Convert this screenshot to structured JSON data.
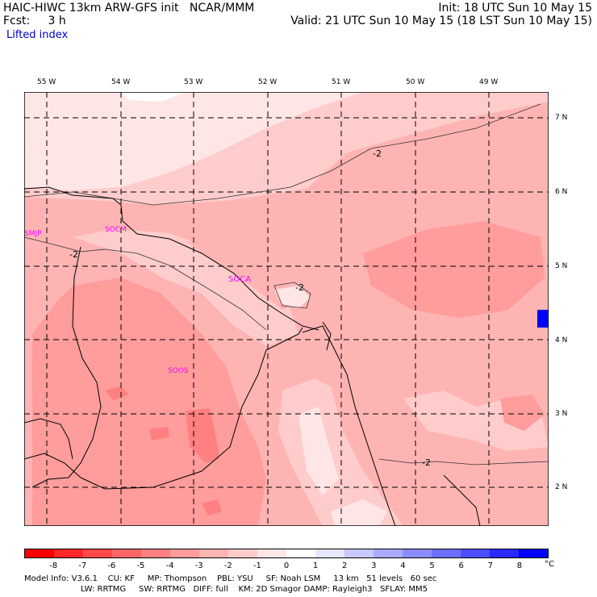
{
  "header": {
    "line1_left": "HAIC-HIWC 13km ARW-GFS init   NCAR/MMM",
    "line2_left": "Fcst:     3 h",
    "field": "Lifted index",
    "init": "Init: 18 UTC Sun 10 May 15",
    "valid": "Valid: 21 UTC Sun 10 May 15 (18 LST Sun 10 May 15)"
  },
  "longitudes": [
    "55 W",
    "54 W",
    "53 W",
    "52 W",
    "51 W",
    "50 W",
    "49 W"
  ],
  "latitudes": [
    "7 N",
    "6 N",
    "5 N",
    "4 N",
    "3 N",
    "2 N"
  ],
  "stations": [
    "SMJP",
    "SOCM",
    "SOCA",
    "SOOS"
  ],
  "contour_labels": [
    "-2",
    "-2",
    "-2",
    "-2"
  ],
  "colorbar": {
    "colors": [
      "#ff0000",
      "#ff2828",
      "#ff4848",
      "#ff6666",
      "#ff8080",
      "#ff9c9c",
      "#ffb4b4",
      "#ffcccc",
      "#ffe6e6",
      "#ffffff",
      "#e6e6ff",
      "#c8c8ff",
      "#aaaaff",
      "#8c8cff",
      "#6e6eff",
      "#4e4eff",
      "#2a2aff",
      "#0000ff"
    ],
    "labels": [
      "-8",
      "-7",
      "-6",
      "-5",
      "-4",
      "-3",
      "-2",
      "-1",
      "0",
      "1",
      "2",
      "3",
      "4",
      "5",
      "6",
      "7",
      "8"
    ],
    "unit": "°C"
  },
  "footer": {
    "line1": "Model Info: V3.6.1    CU: KF     MP: Thompson    PBL: YSU     SF: Noah LSM     13 km   51 levels   60 sec",
    "line2": "LW: RRTMG     SW: RRTMG   DIFF: full    KM: 2D Smagor DAMP: Rayleigh3   SFLAY: MM5"
  }
}
